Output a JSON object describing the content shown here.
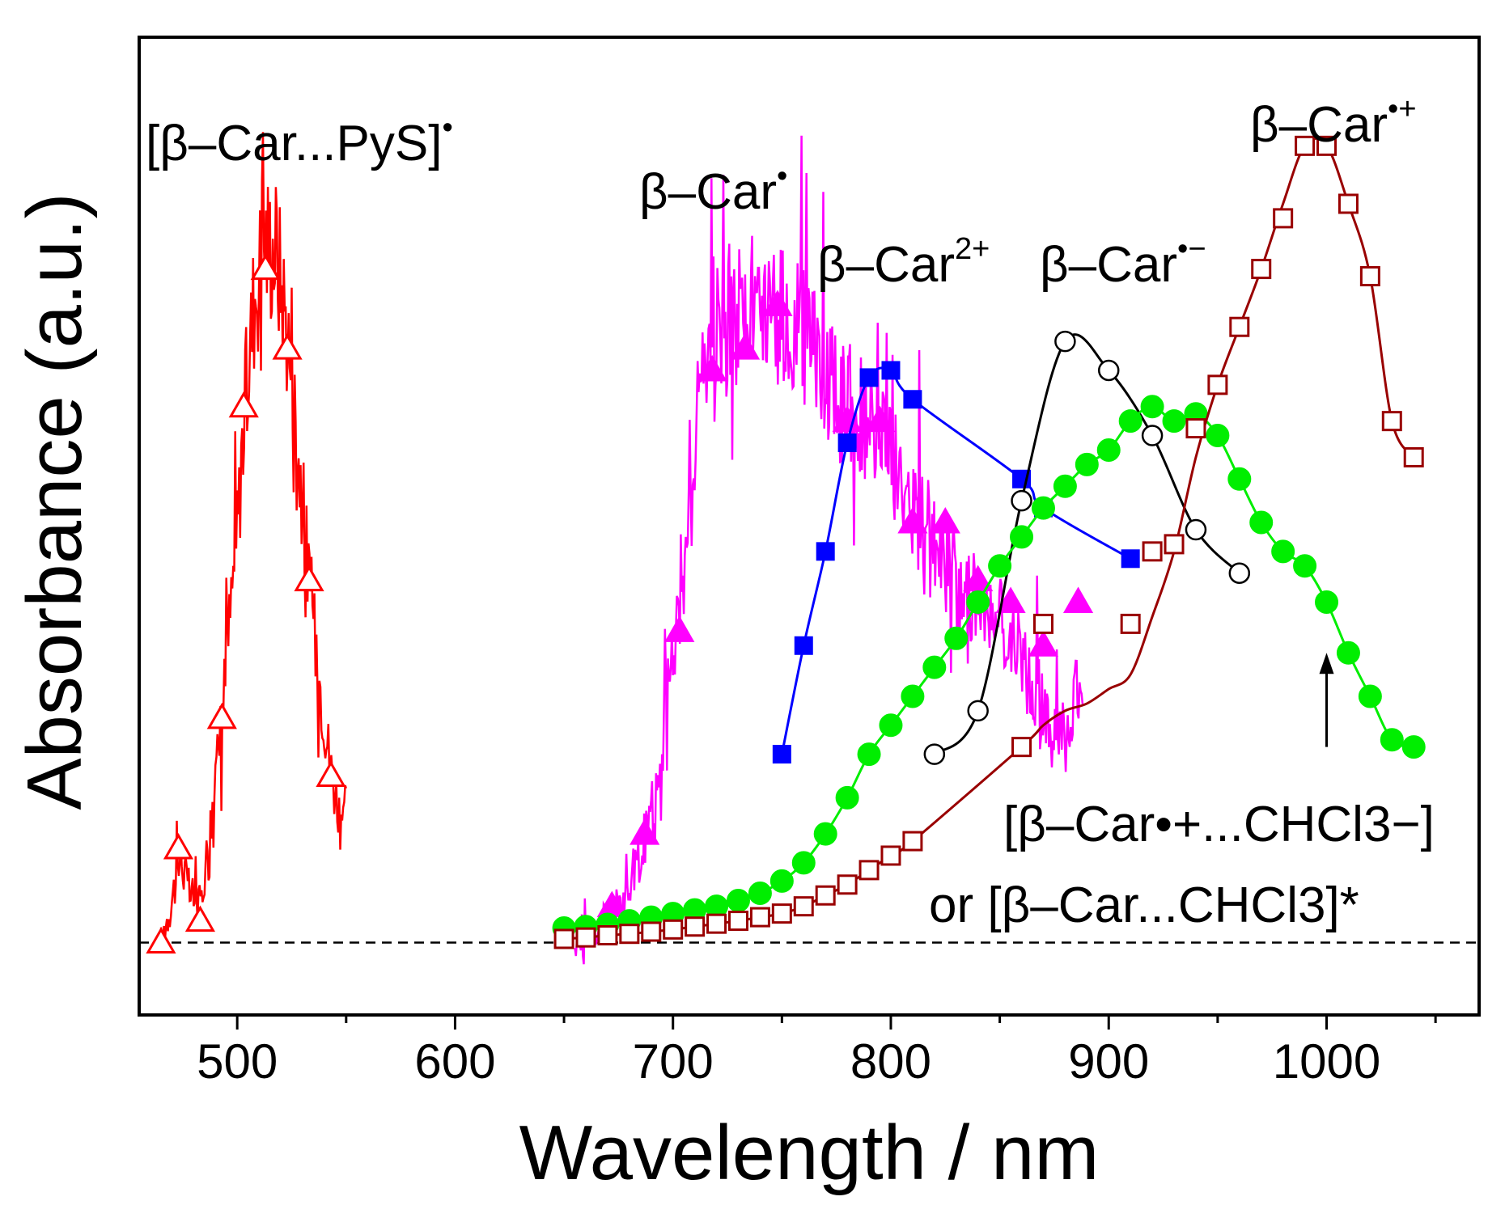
{
  "chart_data": {
    "type": "line",
    "xlabel": "Wavelength / nm",
    "ylabel": "Absorbance (a.u.)",
    "xlim": [
      455,
      1070
    ],
    "ylim": [
      -0.1,
      1.25
    ],
    "x_ticks": [
      500,
      600,
      700,
      800,
      900,
      1000
    ],
    "x_tick_labels": [
      "500",
      "600",
      "700",
      "800",
      "900",
      "1000"
    ],
    "grid": false,
    "baseline": 0,
    "series": [
      {
        "name": "[β–Car...PyS]•",
        "color": "#ff0000",
        "marker": "triangle-open",
        "noisy": true,
        "x": [
          465,
          470,
          474,
          478,
          483,
          488,
          493,
          498,
          503,
          508,
          513,
          518,
          523,
          528,
          533,
          538,
          543,
          547,
          550
        ],
        "y": [
          0.0,
          0.06,
          0.12,
          0.07,
          0.05,
          0.17,
          0.31,
          0.5,
          0.72,
          0.9,
          0.97,
          0.96,
          0.85,
          0.68,
          0.5,
          0.36,
          0.24,
          0.18,
          0.2
        ],
        "markers_x": [
          465,
          473,
          483,
          493,
          503,
          513,
          523,
          533,
          543
        ],
        "markers_y": [
          0.0,
          0.13,
          0.03,
          0.31,
          0.74,
          0.93,
          0.82,
          0.5,
          0.23
        ]
      },
      {
        "name": "β–Car•",
        "color": "#ff00ff",
        "marker": "triangle-filled",
        "noisy": true,
        "x": [
          655,
          665,
          675,
          685,
          692,
          698,
          702,
          708,
          712,
          716,
          720,
          730,
          740,
          750,
          760,
          770,
          780,
          790,
          800,
          810,
          820,
          830,
          840,
          850,
          860,
          870,
          880,
          885,
          888
        ],
        "y": [
          0.0,
          0.02,
          0.05,
          0.12,
          0.2,
          0.35,
          0.45,
          0.6,
          0.75,
          0.85,
          0.87,
          0.86,
          0.88,
          0.86,
          0.83,
          0.78,
          0.74,
          0.71,
          0.67,
          0.6,
          0.55,
          0.5,
          0.47,
          0.44,
          0.38,
          0.33,
          0.28,
          0.34,
          0.3
        ],
        "markers_x": [
          672,
          687,
          703,
          718,
          733,
          748,
          780,
          795,
          810,
          825,
          840,
          855,
          870,
          886
        ],
        "markers_y": [
          0.05,
          0.15,
          0.43,
          0.79,
          0.82,
          0.88,
          0.72,
          0.72,
          0.58,
          0.58,
          0.5,
          0.47,
          0.41,
          0.47
        ]
      },
      {
        "name": "β–Car2+",
        "color": "#0000ff",
        "marker": "square-filled",
        "x": [
          750,
          760,
          770,
          780,
          790,
          800,
          810,
          860,
          870,
          910
        ],
        "y": [
          0.26,
          0.41,
          0.54,
          0.69,
          0.78,
          0.79,
          0.75,
          0.64,
          0.6,
          0.53
        ]
      },
      {
        "name": "β–Car•−",
        "color": "#000000",
        "marker": "circle-open",
        "x": [
          820,
          840,
          860,
          880,
          900,
          920,
          940,
          960
        ],
        "y": [
          0.26,
          0.32,
          0.61,
          0.83,
          0.79,
          0.7,
          0.57,
          0.51
        ]
      },
      {
        "name": "[β–Car•+...CHCl3−] or [β–Car...CHCl3]*",
        "color": "#00ee00",
        "marker": "circle-filled",
        "x": [
          650,
          660,
          670,
          680,
          690,
          700,
          710,
          720,
          730,
          740,
          750,
          760,
          770,
          780,
          790,
          800,
          810,
          820,
          830,
          840,
          850,
          860,
          870,
          880,
          890,
          900,
          910,
          920,
          930,
          940,
          950,
          960,
          970,
          980,
          990,
          1000,
          1010,
          1020,
          1030,
          1040
        ],
        "y": [
          0.02,
          0.022,
          0.025,
          0.03,
          0.035,
          0.04,
          0.045,
          0.05,
          0.058,
          0.068,
          0.085,
          0.11,
          0.15,
          0.2,
          0.26,
          0.3,
          0.34,
          0.38,
          0.42,
          0.47,
          0.52,
          0.56,
          0.6,
          0.63,
          0.66,
          0.68,
          0.72,
          0.74,
          0.72,
          0.73,
          0.7,
          0.64,
          0.58,
          0.54,
          0.52,
          0.47,
          0.4,
          0.34,
          0.28,
          0.27
        ],
        "markers_x": [
          650,
          660,
          670,
          680,
          690,
          700,
          710,
          720,
          730,
          740,
          750,
          760,
          770,
          780,
          790,
          800,
          810,
          820,
          830,
          840,
          850,
          860,
          870,
          880,
          890,
          900,
          910,
          920,
          930,
          940,
          950,
          960,
          970,
          980,
          990,
          1000,
          1010,
          1020,
          1030,
          1040
        ],
        "markers_y": [
          0.02,
          0.022,
          0.025,
          0.03,
          0.035,
          0.04,
          0.045,
          0.05,
          0.058,
          0.068,
          0.085,
          0.11,
          0.15,
          0.2,
          0.26,
          0.3,
          0.34,
          0.38,
          0.42,
          0.47,
          0.52,
          0.56,
          0.6,
          0.63,
          0.66,
          0.68,
          0.72,
          0.74,
          0.72,
          0.73,
          0.7,
          0.64,
          0.58,
          0.54,
          0.52,
          0.47,
          0.4,
          0.34,
          0.28,
          0.27
        ]
      },
      {
        "name": "β–Car•+",
        "color": "#990000",
        "marker": "square-open",
        "x": [
          650,
          660,
          670,
          680,
          690,
          700,
          710,
          720,
          730,
          740,
          750,
          760,
          770,
          780,
          790,
          800,
          810,
          860,
          870,
          880,
          890,
          900,
          910,
          920,
          930,
          940,
          950,
          960,
          970,
          980,
          990,
          1000,
          1010,
          1020,
          1030,
          1040
        ],
        "y": [
          0.005,
          0.007,
          0.01,
          0.012,
          0.015,
          0.018,
          0.022,
          0.026,
          0.03,
          0.035,
          0.04,
          0.05,
          0.065,
          0.08,
          0.1,
          0.12,
          0.14,
          0.27,
          0.3,
          0.32,
          0.33,
          0.35,
          0.37,
          0.45,
          0.54,
          0.67,
          0.77,
          0.85,
          0.93,
          1.02,
          1.1,
          1.1,
          1.02,
          0.92,
          0.72,
          0.67
        ],
        "markers_x": [
          650,
          660,
          670,
          680,
          690,
          700,
          710,
          720,
          730,
          740,
          750,
          760,
          770,
          780,
          790,
          800,
          810,
          860,
          870,
          910,
          920,
          930,
          940,
          950,
          960,
          970,
          980,
          990,
          1000,
          1010,
          1020,
          1030,
          1040
        ],
        "markers_y": [
          0.005,
          0.007,
          0.01,
          0.012,
          0.015,
          0.018,
          0.022,
          0.026,
          0.03,
          0.035,
          0.04,
          0.05,
          0.065,
          0.08,
          0.1,
          0.12,
          0.14,
          0.27,
          0.44,
          0.44,
          0.54,
          0.55,
          0.71,
          0.77,
          0.85,
          0.93,
          1.0,
          1.1,
          1.1,
          1.02,
          0.92,
          0.72,
          0.67
        ]
      }
    ],
    "annotations": [
      {
        "id": "pys",
        "text": "[β–Car...PyS]",
        "superscript": "•"
      },
      {
        "id": "car-neutral",
        "text": "β–Car",
        "superscript": "•"
      },
      {
        "id": "car-dication",
        "text": "β–Car",
        "superscript": "2+"
      },
      {
        "id": "car-anion",
        "text": "β–Car",
        "superscript": "•−"
      },
      {
        "id": "car-cation",
        "text": "β–Car",
        "superscript": "•+"
      },
      {
        "id": "complex-line1",
        "text": "[β–Car•+...CHCl3−]"
      },
      {
        "id": "complex-line2",
        "text": "or [β–Car...CHCl3]*"
      }
    ],
    "arrow": {
      "x": 1000,
      "from_y": 0.27,
      "to_y": 0.4
    }
  }
}
